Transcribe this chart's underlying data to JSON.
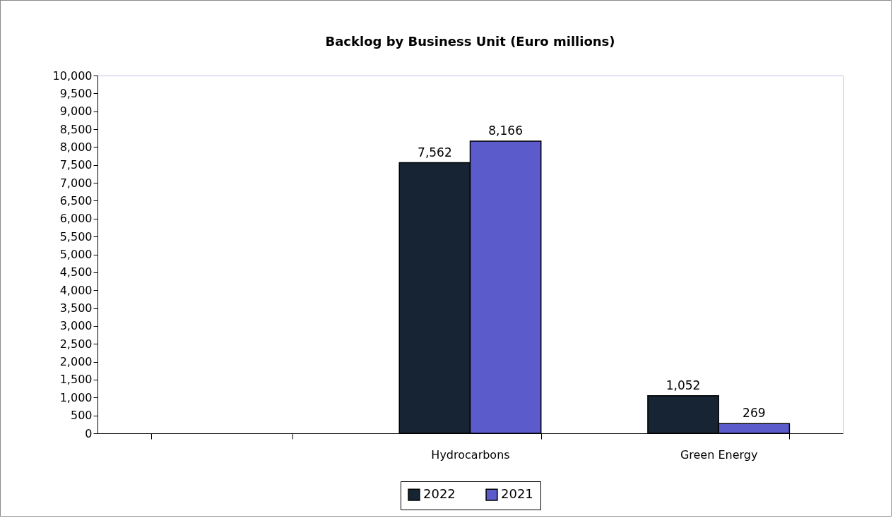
{
  "chart_data": {
    "type": "bar",
    "title": "Backlog by Business Unit (Euro millions)",
    "categories": [
      null,
      "Hydrocarbons",
      "Green Energy"
    ],
    "series": [
      {
        "name": "2022",
        "color": "#162433",
        "values": [
          null,
          7562,
          1052
        ],
        "value_labels": [
          null,
          "7,562",
          "1,052"
        ]
      },
      {
        "name": "2021",
        "color": "#5b5bcc",
        "values": [
          null,
          8166,
          269
        ],
        "value_labels": [
          null,
          "8,166",
          "269"
        ]
      }
    ],
    "ylim": [
      0,
      10000
    ],
    "yticks": [
      0,
      500,
      {
        "value": 1000,
        "label": "1,000"
      },
      {
        "value": 1500,
        "label": "1,500"
      },
      {
        "value": 2000,
        "label": "2,000"
      },
      {
        "value": 2500,
        "label": "2,500"
      },
      {
        "value": 3000,
        "label": "3,000"
      },
      {
        "value": 3500,
        "label": "3,500"
      },
      {
        "value": 4000,
        "label": "4,000"
      },
      {
        "value": 4500,
        "label": "4,500"
      },
      {
        "value": 5000,
        "label": "5,000"
      },
      {
        "value": 5500,
        "label": "5,500"
      },
      {
        "value": 6000,
        "label": "6,000"
      },
      {
        "value": 6500,
        "label": "6,500"
      },
      {
        "value": 7000,
        "label": "7,000"
      },
      {
        "value": 7500,
        "label": "7,500"
      },
      {
        "value": 8000,
        "label": "8,000"
      },
      {
        "value": 8500,
        "label": "8,500"
      },
      {
        "value": 9000,
        "label": "9,000"
      },
      {
        "value": 9500,
        "label": "9,500"
      },
      {
        "value": 10000,
        "label": "10,000"
      }
    ],
    "grid": false,
    "legend": "bottom"
  }
}
